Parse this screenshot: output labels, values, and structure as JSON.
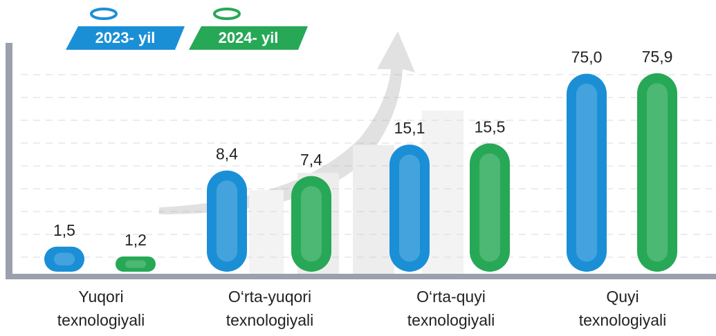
{
  "chart_data": {
    "type": "bar",
    "categories": [
      "Yuqori texnologiyali",
      "O‘rta-yuqori texnologiyali",
      "O‘rta-quyi texnologiyali",
      "Quyi texnologiyali"
    ],
    "series": [
      {
        "name": "2023- yil",
        "color": "#1b8fd6",
        "values": [
          1.5,
          8.4,
          15.1,
          75.0
        ],
        "value_labels": [
          "1,5",
          "8,4",
          "15,1",
          "75,0"
        ]
      },
      {
        "name": "2024- yil",
        "color": "#27a856",
        "values": [
          1.2,
          7.4,
          15.5,
          75.9
        ],
        "value_labels": [
          "1,2",
          "7,4",
          "15,5",
          "75,9"
        ]
      }
    ],
    "log_scale": true,
    "ylim": [
      0.85,
      90
    ]
  }
}
